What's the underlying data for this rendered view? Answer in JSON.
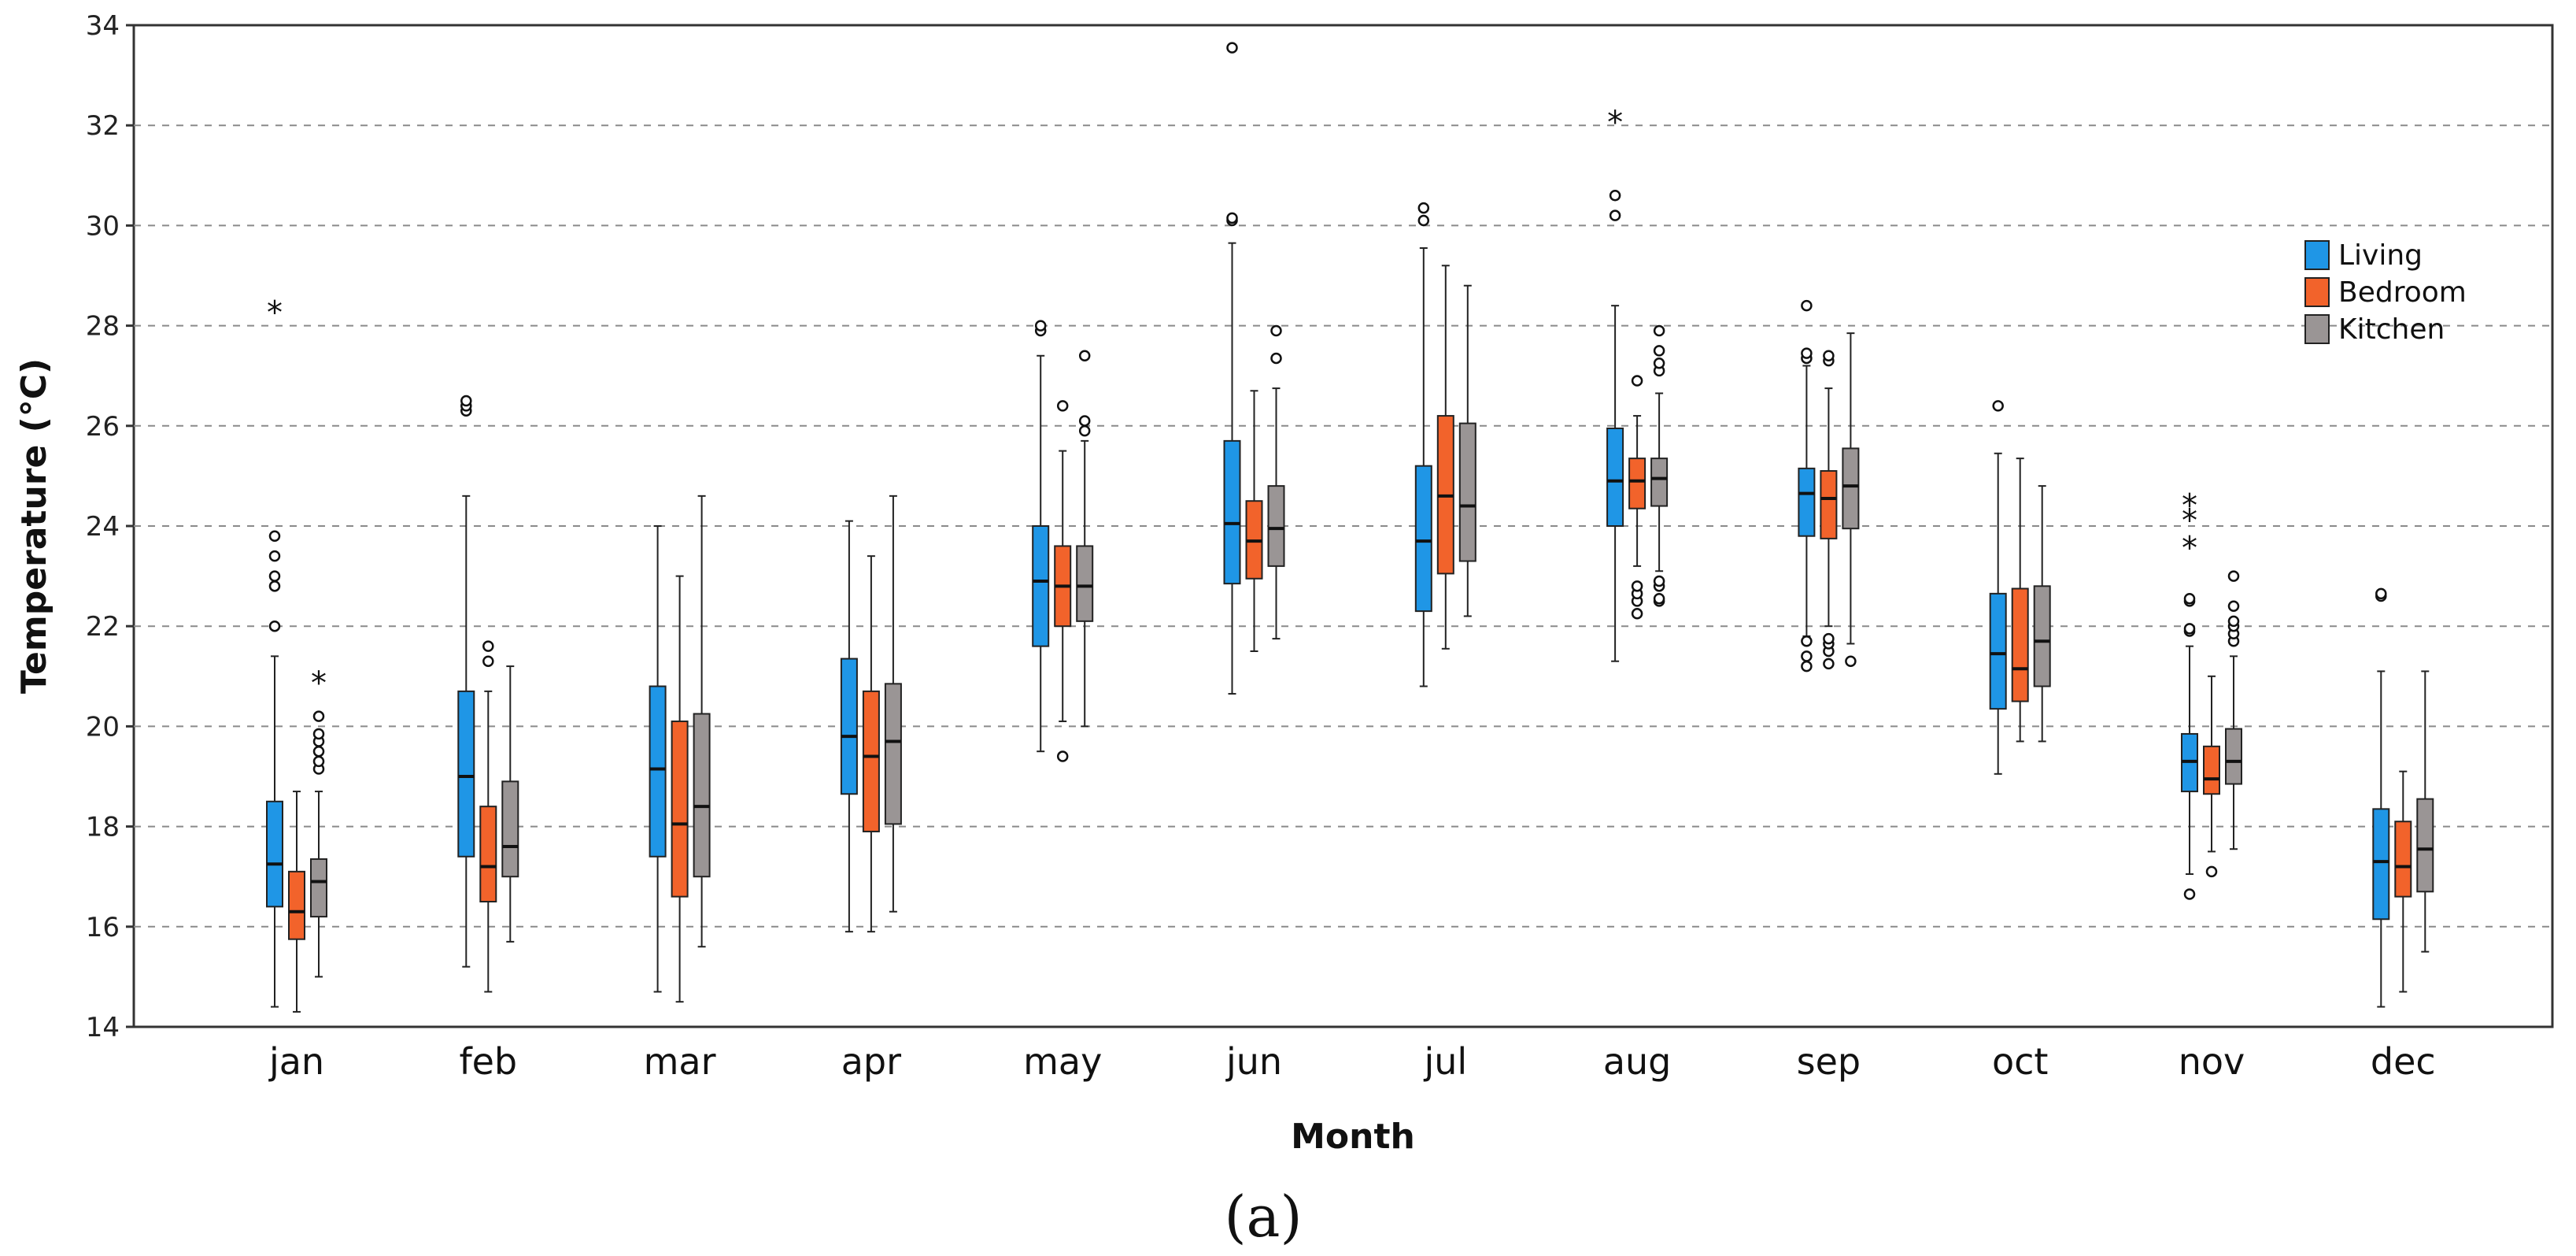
{
  "caption": "(a)",
  "chart_data": {
    "type": "boxplot",
    "title": "",
    "xlabel": "Month",
    "ylabel": "Temperature (°C)",
    "ylim": [
      14,
      34
    ],
    "yticks": [
      "14",
      "16",
      "18",
      "20",
      "22",
      "24",
      "26",
      "28",
      "30",
      "32",
      "34"
    ],
    "grid": "horizontal dashed",
    "legend_position": "right",
    "categories": [
      "jan",
      "feb",
      "mar",
      "apr",
      "may",
      "jun",
      "jul",
      "aug",
      "sep",
      "oct",
      "nov",
      "dec"
    ],
    "series": [
      {
        "name": "Living",
        "color": "#1f96e6",
        "boxes": [
          {
            "min": 14.4,
            "q1": 16.4,
            "median": 17.25,
            "q3": 18.5,
            "max": 21.4,
            "outliers": [
              22.0,
              22.8,
              23.0,
              23.4,
              23.8
            ],
            "extremes": [
              28.3
            ]
          },
          {
            "min": 15.2,
            "q1": 17.4,
            "median": 19.0,
            "q3": 20.7,
            "max": 24.6,
            "outliers": [
              26.3,
              26.4,
              26.5
            ],
            "extremes": []
          },
          {
            "min": 14.7,
            "q1": 17.4,
            "median": 19.15,
            "q3": 20.8,
            "max": 24.0,
            "outliers": [],
            "extremes": []
          },
          {
            "min": 15.9,
            "q1": 18.65,
            "median": 19.8,
            "q3": 21.35,
            "max": 24.1,
            "outliers": [],
            "extremes": []
          },
          {
            "min": 19.5,
            "q1": 21.6,
            "median": 22.9,
            "q3": 24.0,
            "max": 27.4,
            "outliers": [
              27.9,
              28.0
            ],
            "extremes": []
          },
          {
            "min": 20.65,
            "q1": 22.85,
            "median": 24.05,
            "q3": 25.7,
            "max": 29.65,
            "outliers": [
              30.1,
              30.15,
              33.55
            ],
            "extremes": []
          },
          {
            "min": 20.8,
            "q1": 22.3,
            "median": 23.7,
            "q3": 25.2,
            "max": 29.55,
            "outliers": [
              30.1,
              30.35
            ],
            "extremes": []
          },
          {
            "min": 21.3,
            "q1": 24.0,
            "median": 24.9,
            "q3": 25.95,
            "max": 28.4,
            "outliers": [
              30.2,
              30.6
            ],
            "extremes": [
              32.1
            ]
          },
          {
            "min": 21.8,
            "q1": 23.8,
            "median": 24.65,
            "q3": 25.15,
            "max": 27.2,
            "outliers": [
              21.2,
              21.4,
              21.7,
              27.35,
              27.45,
              28.4
            ],
            "extremes": []
          },
          {
            "min": 19.05,
            "q1": 20.35,
            "median": 21.45,
            "q3": 22.65,
            "max": 25.45,
            "outliers": [
              26.4
            ],
            "extremes": []
          },
          {
            "min": 17.05,
            "q1": 18.7,
            "median": 19.3,
            "q3": 19.85,
            "max": 21.6,
            "outliers": [
              16.65,
              21.9,
              21.95,
              22.5,
              22.55
            ],
            "extremes": [
              23.6,
              24.15,
              24.45
            ]
          },
          {
            "min": 14.4,
            "q1": 16.15,
            "median": 17.3,
            "q3": 18.35,
            "max": 21.1,
            "outliers": [
              22.6,
              22.65
            ],
            "extremes": []
          }
        ]
      },
      {
        "name": "Bedroom",
        "color": "#f2632b",
        "boxes": [
          {
            "min": 14.3,
            "q1": 15.75,
            "median": 16.3,
            "q3": 17.1,
            "max": 18.7,
            "outliers": [],
            "extremes": []
          },
          {
            "min": 14.7,
            "q1": 16.5,
            "median": 17.2,
            "q3": 18.4,
            "max": 20.7,
            "outliers": [
              21.3,
              21.6
            ],
            "extremes": []
          },
          {
            "min": 14.5,
            "q1": 16.6,
            "median": 18.05,
            "q3": 20.1,
            "max": 23.0,
            "outliers": [],
            "extremes": []
          },
          {
            "min": 15.9,
            "q1": 17.9,
            "median": 19.4,
            "q3": 20.7,
            "max": 23.4,
            "outliers": [],
            "extremes": []
          },
          {
            "min": 20.1,
            "q1": 22.0,
            "median": 22.8,
            "q3": 23.6,
            "max": 25.5,
            "outliers": [
              19.4,
              26.4
            ],
            "extremes": []
          },
          {
            "min": 21.5,
            "q1": 22.95,
            "median": 23.7,
            "q3": 24.5,
            "max": 26.7,
            "outliers": [],
            "extremes": []
          },
          {
            "min": 21.55,
            "q1": 23.05,
            "median": 24.6,
            "q3": 26.2,
            "max": 29.2,
            "outliers": [],
            "extremes": []
          },
          {
            "min": 23.2,
            "q1": 24.35,
            "median": 24.9,
            "q3": 25.35,
            "max": 26.2,
            "outliers": [
              22.25,
              22.5,
              22.65,
              22.8,
              26.9
            ],
            "extremes": []
          },
          {
            "min": 22.0,
            "q1": 23.75,
            "median": 24.55,
            "q3": 25.1,
            "max": 26.75,
            "outliers": [
              21.25,
              21.5,
              21.65,
              21.75,
              27.3,
              27.4
            ],
            "extremes": []
          },
          {
            "min": 19.7,
            "q1": 20.5,
            "median": 21.15,
            "q3": 22.75,
            "max": 25.35,
            "outliers": [],
            "extremes": []
          },
          {
            "min": 17.5,
            "q1": 18.65,
            "median": 18.95,
            "q3": 19.6,
            "max": 21.0,
            "outliers": [
              17.1
            ],
            "extremes": []
          },
          {
            "min": 14.7,
            "q1": 16.6,
            "median": 17.2,
            "q3": 18.1,
            "max": 19.1,
            "outliers": [],
            "extremes": []
          }
        ]
      },
      {
        "name": "Kitchen",
        "color": "#9a9595",
        "boxes": [
          {
            "min": 15.0,
            "q1": 16.2,
            "median": 16.9,
            "q3": 17.35,
            "max": 18.7,
            "outliers": [
              19.15,
              19.3,
              19.5,
              19.7,
              19.85,
              20.2
            ],
            "extremes": [
              20.9
            ]
          },
          {
            "min": 15.7,
            "q1": 17.0,
            "median": 17.6,
            "q3": 18.9,
            "max": 21.2,
            "outliers": [],
            "extremes": []
          },
          {
            "min": 15.6,
            "q1": 17.0,
            "median": 18.4,
            "q3": 20.25,
            "max": 24.6,
            "outliers": [],
            "extremes": []
          },
          {
            "min": 16.3,
            "q1": 18.05,
            "median": 19.7,
            "q3": 20.85,
            "max": 24.6,
            "outliers": [],
            "extremes": []
          },
          {
            "min": 20.0,
            "q1": 22.1,
            "median": 22.8,
            "q3": 23.6,
            "max": 25.7,
            "outliers": [
              25.9,
              26.1,
              27.4
            ],
            "extremes": []
          },
          {
            "min": 21.75,
            "q1": 23.2,
            "median": 23.95,
            "q3": 24.8,
            "max": 26.75,
            "outliers": [
              27.35,
              27.9
            ],
            "extremes": []
          },
          {
            "min": 22.2,
            "q1": 23.3,
            "median": 24.4,
            "q3": 26.05,
            "max": 28.8,
            "outliers": [],
            "extremes": []
          },
          {
            "min": 23.1,
            "q1": 24.4,
            "median": 24.95,
            "q3": 25.35,
            "max": 26.65,
            "outliers": [
              22.5,
              22.55,
              22.8,
              22.9,
              27.1,
              27.25,
              27.5,
              27.9
            ],
            "extremes": []
          },
          {
            "min": 21.65,
            "q1": 23.95,
            "median": 24.8,
            "q3": 25.55,
            "max": 27.85,
            "outliers": [
              21.3
            ],
            "extremes": []
          },
          {
            "min": 19.7,
            "q1": 20.8,
            "median": 21.7,
            "q3": 22.8,
            "max": 24.8,
            "outliers": [],
            "extremes": []
          },
          {
            "min": 17.55,
            "q1": 18.85,
            "median": 19.3,
            "q3": 19.95,
            "max": 21.4,
            "outliers": [
              21.7,
              21.85,
              22.0,
              22.1,
              22.4,
              23.0
            ],
            "extremes": []
          },
          {
            "min": 15.5,
            "q1": 16.7,
            "median": 17.55,
            "q3": 18.55,
            "max": 21.1,
            "outliers": [],
            "extremes": []
          }
        ]
      }
    ]
  }
}
